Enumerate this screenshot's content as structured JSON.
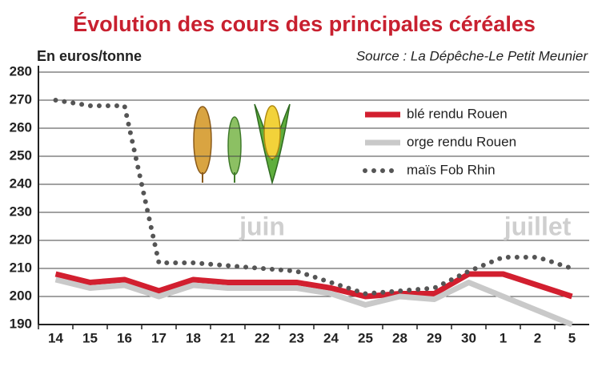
{
  "chart_data": {
    "type": "line",
    "title": "Évolution des cours des principales céréales",
    "subtitle": "En euros/tonne",
    "source": "Source : La Dépêche-Le Petit Meunier",
    "annotations": [
      "juin",
      "juillet"
    ],
    "categories": [
      "14",
      "15",
      "16",
      "17",
      "18",
      "21",
      "22",
      "23",
      "24",
      "25",
      "28",
      "29",
      "30",
      "1",
      "2",
      "5"
    ],
    "series": [
      {
        "name": "blé rendu Rouen",
        "color": "#d21f2f",
        "style": "solid",
        "values": [
          208,
          205,
          206,
          202,
          206,
          205,
          205,
          205,
          203,
          200,
          201,
          201,
          208,
          208,
          204,
          200
        ]
      },
      {
        "name": "orge rendu Rouen",
        "color": "#c9c9c9",
        "style": "solid",
        "values": [
          206,
          203,
          204,
          200,
          204,
          203,
          203,
          203,
          201,
          197,
          200,
          199,
          205,
          200,
          195,
          190
        ]
      },
      {
        "name": "maïs Fob Rhin",
        "color": "#555555",
        "style": "dotted",
        "values": [
          270,
          268,
          268,
          212,
          212,
          211,
          210,
          209,
          205,
          201,
          202,
          203,
          209,
          214,
          214,
          210
        ]
      }
    ],
    "ylim": [
      190,
      280
    ],
    "yticks": [
      190,
      200,
      210,
      220,
      230,
      240,
      250,
      260,
      270,
      280
    ],
    "grid": true
  }
}
